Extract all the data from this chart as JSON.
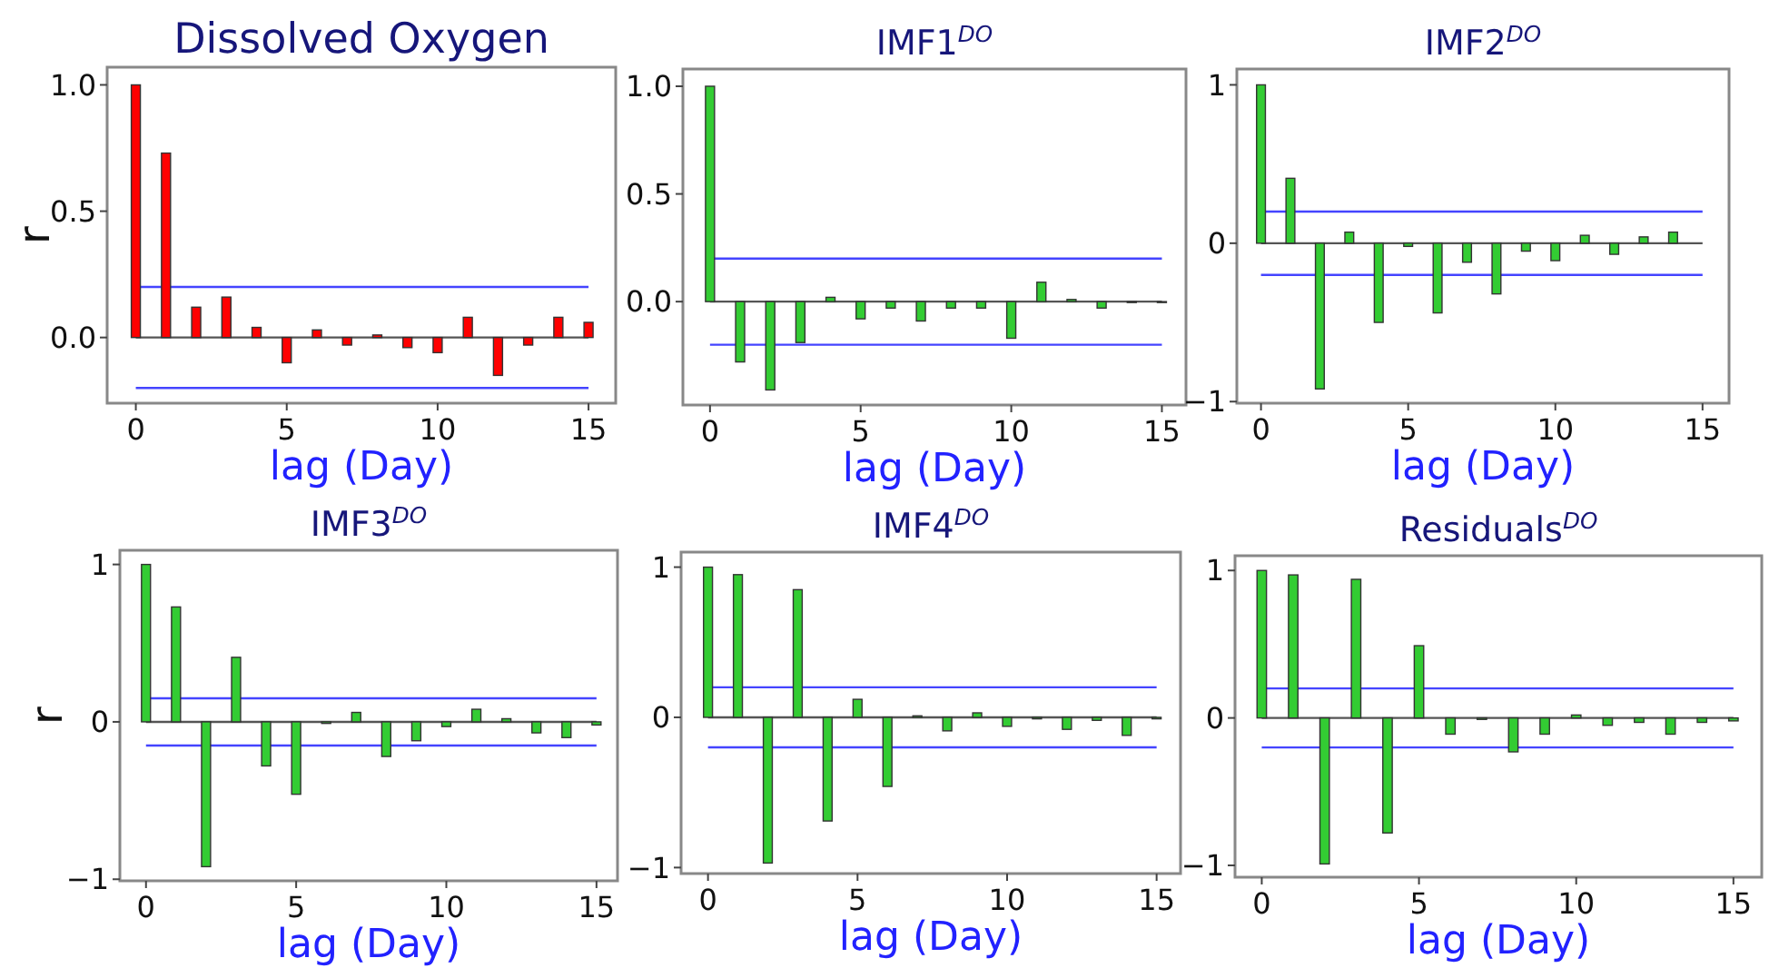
{
  "chart_data": [
    {
      "type": "bar",
      "title": "Dissolved Oxygen",
      "xlabel": "lag (Day)",
      "ylabel": "r",
      "x": [
        0,
        1,
        2,
        3,
        4,
        5,
        6,
        7,
        8,
        9,
        10,
        11,
        12,
        13,
        14,
        15
      ],
      "series": [
        {
          "color": "#ff0000",
          "values": [
            1.0,
            0.73,
            0.12,
            0.16,
            0.04,
            -0.1,
            0.03,
            -0.03,
            0.01,
            -0.04,
            -0.06,
            0.08,
            -0.15,
            -0.03,
            0.08,
            0.06
          ]
        }
      ],
      "xlim": [
        -0.95,
        15.9
      ],
      "ylim": [
        -0.26,
        1.07
      ],
      "xticks": [
        0,
        5,
        10,
        15
      ],
      "yticks": [
        {
          "value": 0,
          "label": "0.0"
        },
        {
          "value": 0.5,
          "label": "0.5"
        },
        {
          "value": 1,
          "label": "1.0"
        }
      ],
      "ref_lines": [
        {
          "axis": "y",
          "value": 0,
          "color": "#555555"
        },
        {
          "axis": "y",
          "value": 0.2,
          "color": "#4444ff"
        },
        {
          "axis": "y",
          "value": -0.2,
          "color": "#4444ff"
        }
      ]
    },
    {
      "type": "bar",
      "title": "IMF1$^{DO}$",
      "xlabel": "lag (Day)",
      "x": [
        0,
        1,
        2,
        3,
        4,
        5,
        6,
        7,
        8,
        9,
        10,
        11,
        12,
        13,
        14,
        15
      ],
      "series": [
        {
          "color": "#33cc33",
          "values": [
            1.0,
            -0.28,
            -0.41,
            -0.19,
            0.02,
            -0.08,
            -0.03,
            -0.09,
            -0.03,
            -0.03,
            -0.17,
            0.09,
            0.01,
            -0.03,
            0.0,
            0.0
          ]
        }
      ],
      "xlim": [
        -0.9,
        15.8
      ],
      "ylim": [
        -0.48,
        1.08
      ],
      "xticks": [
        0,
        5,
        10,
        15
      ],
      "yticks": [
        {
          "value": 0,
          "label": "0.0"
        },
        {
          "value": 0.5,
          "label": "0.5"
        },
        {
          "value": 1,
          "label": "1.0"
        }
      ],
      "ref_lines": [
        {
          "axis": "y",
          "value": 0,
          "color": "#555555"
        },
        {
          "axis": "y",
          "value": 0.2,
          "color": "#4444ff"
        },
        {
          "axis": "y",
          "value": -0.2,
          "color": "#4444ff"
        }
      ]
    },
    {
      "type": "bar",
      "title": "IMF2$^{DO}$",
      "xlabel": "lag (Day)",
      "x": [
        0,
        1,
        2,
        3,
        4,
        5,
        6,
        7,
        8,
        9,
        10,
        11,
        12,
        13,
        14
      ],
      "series": [
        {
          "color": "#33cc33",
          "values": [
            1.0,
            0.41,
            -0.92,
            0.07,
            -0.5,
            -0.02,
            -0.44,
            -0.12,
            -0.32,
            -0.05,
            -0.11,
            0.05,
            -0.07,
            0.04,
            0.07
          ]
        }
      ],
      "xlim": [
        -0.82,
        15.9
      ],
      "ylim": [
        -1.01,
        1.1
      ],
      "xticks": [
        0,
        5,
        10,
        15
      ],
      "yticks": [
        {
          "value": -1,
          "label": "−1"
        },
        {
          "value": 0,
          "label": "0"
        },
        {
          "value": 1,
          "label": "1"
        }
      ],
      "ref_lines": [
        {
          "axis": "y",
          "value": 0,
          "color": "#555555"
        },
        {
          "axis": "y",
          "value": 0.2,
          "color": "#4444ff"
        },
        {
          "axis": "y",
          "value": -0.2,
          "color": "#4444ff"
        }
      ]
    },
    {
      "type": "bar",
      "title": "IMF3$^{DO}$",
      "xlabel": "lag (Day)",
      "ylabel": "r",
      "x": [
        0,
        1,
        2,
        3,
        4,
        5,
        6,
        7,
        8,
        9,
        10,
        11,
        12,
        13,
        14,
        15
      ],
      "series": [
        {
          "color": "#33cc33",
          "values": [
            1.0,
            0.73,
            -0.92,
            0.41,
            -0.28,
            -0.46,
            -0.01,
            0.06,
            -0.22,
            -0.12,
            -0.03,
            0.08,
            0.02,
            -0.07,
            -0.1,
            -0.02
          ]
        }
      ],
      "xlim": [
        -0.87,
        15.7
      ],
      "ylim": [
        -1.01,
        1.09
      ],
      "xticks": [
        0,
        5,
        10,
        15
      ],
      "yticks": [
        {
          "value": -1,
          "label": "−1"
        },
        {
          "value": 0,
          "label": "0"
        },
        {
          "value": 1,
          "label": "1"
        }
      ],
      "ref_lines": [
        {
          "axis": "y",
          "value": 0,
          "color": "#555555"
        },
        {
          "axis": "y",
          "value": 0.15,
          "color": "#4444ff"
        },
        {
          "axis": "y",
          "value": -0.15,
          "color": "#4444ff"
        }
      ]
    },
    {
      "type": "bar",
      "title": "IMF4$^{DO}$",
      "xlabel": "lag (Day)",
      "x": [
        0,
        1,
        2,
        3,
        4,
        5,
        6,
        7,
        8,
        9,
        10,
        11,
        12,
        13,
        14,
        15
      ],
      "series": [
        {
          "color": "#33cc33",
          "values": [
            1.0,
            0.95,
            -0.97,
            0.85,
            -0.69,
            0.12,
            -0.46,
            0.01,
            -0.09,
            0.03,
            -0.06,
            -0.01,
            -0.08,
            -0.02,
            -0.12,
            -0.01
          ]
        }
      ],
      "xlim": [
        -0.9,
        15.8
      ],
      "ylim": [
        -1.04,
        1.1
      ],
      "xticks": [
        0,
        5,
        10,
        15
      ],
      "yticks": [
        {
          "value": -1,
          "label": "−1"
        },
        {
          "value": 0,
          "label": "0"
        },
        {
          "value": 1,
          "label": "1"
        }
      ],
      "ref_lines": [
        {
          "axis": "y",
          "value": 0,
          "color": "#555555"
        },
        {
          "axis": "y",
          "value": 0.2,
          "color": "#4444ff"
        },
        {
          "axis": "y",
          "value": -0.2,
          "color": "#4444ff"
        }
      ]
    },
    {
      "type": "bar",
      "title": "Residuals$^{DO}$",
      "xlabel": "lag (Day)",
      "x": [
        0,
        1,
        2,
        3,
        4,
        5,
        6,
        7,
        8,
        9,
        10,
        11,
        12,
        13,
        14,
        15
      ],
      "series": [
        {
          "color": "#33cc33",
          "values": [
            1.0,
            0.97,
            -0.99,
            0.94,
            -0.78,
            0.49,
            -0.11,
            -0.01,
            -0.23,
            -0.11,
            0.02,
            -0.05,
            -0.03,
            -0.11,
            -0.03,
            -0.02
          ]
        }
      ],
      "xlim": [
        -0.85,
        15.9
      ],
      "ylim": [
        -1.08,
        1.1
      ],
      "xticks": [
        0,
        5,
        10,
        15
      ],
      "yticks": [
        {
          "value": -1,
          "label": "−1"
        },
        {
          "value": 0,
          "label": "0"
        },
        {
          "value": 1,
          "label": "1"
        }
      ],
      "ref_lines": [
        {
          "axis": "y",
          "value": 0,
          "color": "#555555"
        },
        {
          "axis": "y",
          "value": 0.2,
          "color": "#4444ff"
        },
        {
          "axis": "y",
          "value": -0.2,
          "color": "#4444ff"
        }
      ]
    }
  ]
}
